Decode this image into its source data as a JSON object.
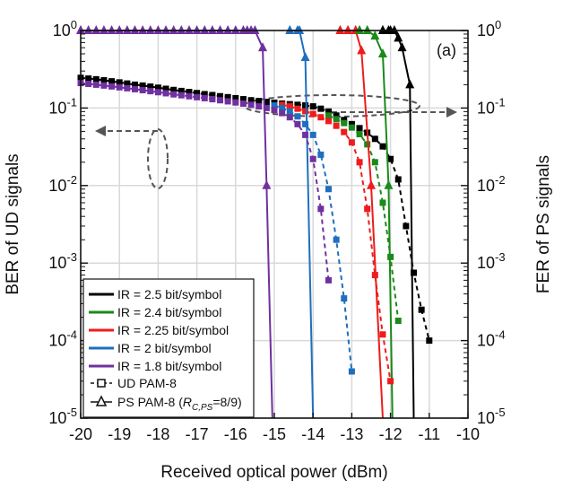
{
  "chart_data": {
    "type": "line",
    "panel_label": "(a)",
    "xlabel": "Received optical power (dBm)",
    "ylabel_left": "BER of UD signals",
    "ylabel_right": "FER of PS signals",
    "xlim": [
      -20,
      -10
    ],
    "x_ticks": [
      -20,
      -19,
      -18,
      -17,
      -16,
      -15,
      -14,
      -13,
      -12,
      -11,
      -10
    ],
    "y_scale": "log",
    "ylim": [
      1e-05,
      1
    ],
    "y_breaks": [
      1e-05,
      0.0001,
      0.001,
      0.01,
      0.1,
      1
    ],
    "y_tick_labels": [
      {
        "base": "10",
        "exp": "-5"
      },
      {
        "base": "10",
        "exp": "-4"
      },
      {
        "base": "10",
        "exp": "-3"
      },
      {
        "base": "10",
        "exp": "-2"
      },
      {
        "base": "10",
        "exp": "-1"
      },
      {
        "base": "10",
        "exp": "0"
      }
    ],
    "grid": true,
    "legend_position": "bottom-left",
    "legend": {
      "ir_entries": [
        {
          "text": "IR = 2.5 bit/symbol",
          "color": "#000000"
        },
        {
          "text": "IR = 2.4 bit/symbol",
          "color": "#1a8a1a"
        },
        {
          "text": "IR = 2.25 bit/symbol",
          "color": "#ee1c1c"
        },
        {
          "text": "IR = 2 bit/symbol",
          "color": "#1f6fbf"
        },
        {
          "text": "IR = 1.8 bit/symbol",
          "color": "#7030a0"
        }
      ],
      "ud_text": "UD PAM-8",
      "ps_text": {
        "prefix": "PS PAM-8 (",
        "r": "R",
        "sub": "C,PS",
        "suffix": "=8/9)"
      }
    },
    "series": [
      {
        "name": "IR = 2.5 bit/symbol",
        "color": "#000000",
        "ud": {
          "x": [
            -20,
            -19.8,
            -19.6,
            -19.4,
            -19.2,
            -19,
            -18.8,
            -18.6,
            -18.4,
            -18.2,
            -18,
            -17.8,
            -17.6,
            -17.4,
            -17.2,
            -17,
            -16.8,
            -16.6,
            -16.4,
            -16.2,
            -16,
            -15.8,
            -15.6,
            -15.4,
            -15.2,
            -15,
            -14.8,
            -14.6,
            -14.4,
            -14.2,
            -14,
            -13.8,
            -13.6,
            -13.4,
            -13.2,
            -13,
            -12.8,
            -12.6,
            -12.4,
            -12.2,
            -12,
            -11.8,
            -11.6,
            -11.4,
            -11.2,
            -11
          ],
          "y": [
            0.245,
            0.24,
            0.235,
            0.228,
            0.221,
            0.214,
            0.207,
            0.2,
            0.195,
            0.189,
            0.183,
            0.177,
            0.171,
            0.166,
            0.161,
            0.156,
            0.151,
            0.147,
            0.142,
            0.138,
            0.134,
            0.13,
            0.126,
            0.123,
            0.12,
            0.117,
            0.114,
            0.112,
            0.11,
            0.108,
            0.105,
            0.098,
            0.09,
            0.08,
            0.07,
            0.062,
            0.055,
            0.048,
            0.04,
            0.032,
            0.022,
            0.012,
            0.003,
            0.00075,
            0.00025,
            0.0001
          ]
        },
        "ps": {
          "x": [
            -12.2,
            -12.05,
            -11.9,
            -11.8,
            -11.7,
            -11.5,
            -11.4
          ],
          "y": [
            1,
            1,
            1,
            0.8,
            0.6,
            0.2,
            1e-05
          ]
        }
      },
      {
        "name": "IR = 2.4 bit/symbol",
        "color": "#1a8a1a",
        "ud": {
          "x": [
            -13.6,
            -13.4,
            -13.2,
            -13,
            -12.8,
            -12.6,
            -12.4,
            -12.2,
            -12,
            -11.8
          ],
          "y": [
            0.08,
            0.072,
            0.064,
            0.056,
            0.046,
            0.034,
            0.02,
            0.006,
            0.0012,
            0.00018
          ]
        },
        "ps": {
          "x": [
            -12.8,
            -12.6,
            -12.4,
            -12.2,
            -12.05,
            -11.95
          ],
          "y": [
            1,
            1,
            0.85,
            0.5,
            0.01,
            1e-05
          ]
        }
      },
      {
        "name": "IR = 2.25 bit/symbol",
        "color": "#ee1c1c",
        "ud": {
          "x": [
            -14.8,
            -14.6,
            -14.4,
            -14.2,
            -14,
            -13.8,
            -13.6,
            -13.4,
            -13.2,
            -13,
            -12.8,
            -12.6,
            -12.4,
            -12.2,
            -12
          ],
          "y": [
            0.11,
            0.105,
            0.098,
            0.091,
            0.084,
            0.076,
            0.068,
            0.059,
            0.049,
            0.036,
            0.02,
            0.005,
            0.0007,
            0.00012,
            3e-05
          ]
        },
        "ps": {
          "x": [
            -13.3,
            -13.1,
            -12.9,
            -12.75,
            -12.5,
            -12.2
          ],
          "y": [
            1,
            1,
            1,
            0.55,
            0.01,
            1e-05
          ]
        }
      },
      {
        "name": "IR = 2 bit/symbol",
        "color": "#1f6fbf",
        "ud": {
          "x": [
            -15,
            -14.8,
            -14.6,
            -14.4,
            -14.2,
            -14,
            -13.8,
            -13.6,
            -13.4,
            -13.2,
            -13
          ],
          "y": [
            0.108,
            0.1,
            0.09,
            0.078,
            0.062,
            0.045,
            0.025,
            0.009,
            0.002,
            0.00035,
            4e-05
          ]
        },
        "ps": {
          "x": [
            -14.6,
            -14.35,
            -14.2,
            -14
          ],
          "y": [
            1,
            1,
            0.45,
            1e-05
          ]
        }
      },
      {
        "name": "IR = 1.8 bit/symbol",
        "color": "#7030a0",
        "ud": {
          "x": [
            -20,
            -19.8,
            -19.6,
            -19.4,
            -19.2,
            -19,
            -18.8,
            -18.6,
            -18.4,
            -18.2,
            -18,
            -17.8,
            -17.6,
            -17.4,
            -17.2,
            -17,
            -16.8,
            -16.6,
            -16.4,
            -16.2,
            -16,
            -15.8,
            -15.6,
            -15.4,
            -15.2,
            -15,
            -14.8,
            -14.6,
            -14.4,
            -14.2,
            -14,
            -13.8,
            -13.6
          ],
          "y": [
            0.21,
            0.205,
            0.2,
            0.195,
            0.19,
            0.185,
            0.18,
            0.175,
            0.17,
            0.165,
            0.16,
            0.155,
            0.15,
            0.146,
            0.142,
            0.138,
            0.134,
            0.13,
            0.126,
            0.122,
            0.118,
            0.114,
            0.11,
            0.105,
            0.1,
            0.094,
            0.086,
            0.076,
            0.062,
            0.045,
            0.022,
            0.005,
            0.0006
          ]
        },
        "ps": {
          "x": [
            -20,
            -15.7,
            -15.5,
            -15.3,
            -15.2,
            -15.05
          ],
          "y": [
            1,
            1,
            1,
            0.6,
            0.01,
            1e-05
          ]
        }
      }
    ]
  }
}
